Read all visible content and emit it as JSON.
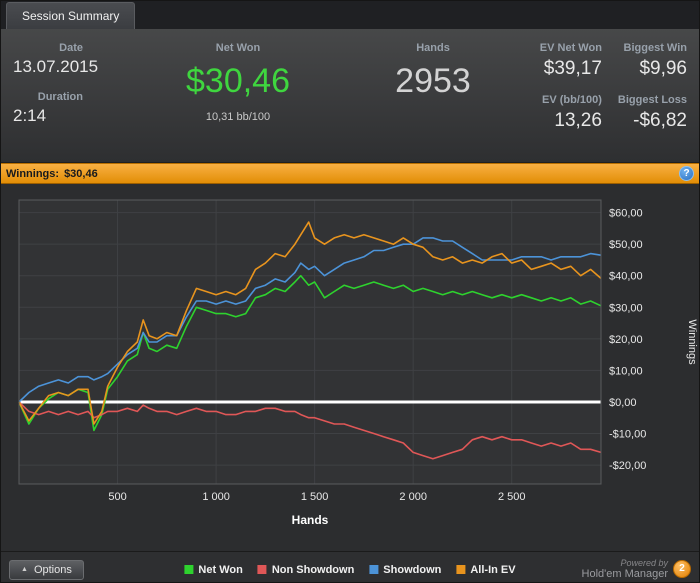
{
  "tab": {
    "title": "Session Summary"
  },
  "stats": {
    "date": {
      "label": "Date",
      "value": "13.07.2015"
    },
    "duration": {
      "label": "Duration",
      "value": "2:14"
    },
    "net_won": {
      "label": "Net Won",
      "value": "$30,46",
      "bb100": "10,31 bb/100"
    },
    "hands": {
      "label": "Hands",
      "value": "2953"
    },
    "right": [
      {
        "label": "EV Net Won",
        "value": "$39,17"
      },
      {
        "label": "Biggest Win",
        "value": "$9,96"
      },
      {
        "label": "EV (bb/100)",
        "value": "13,26"
      },
      {
        "label": "Biggest Loss",
        "value": "-$6,82"
      }
    ]
  },
  "winnings_bar": {
    "label": "Winnings:",
    "value": "$30,46",
    "help": "?"
  },
  "chart_data": {
    "type": "line",
    "title": "",
    "xlabel": "Hands",
    "ylabel": "Winnings",
    "xlim": [
      0,
      2953
    ],
    "ylim": [
      -26,
      64
    ],
    "x_ticks": [
      500,
      1000,
      1500,
      2000,
      2500
    ],
    "x_tick_labels": [
      "500",
      "1 000",
      "1 500",
      "2 000",
      "2 500"
    ],
    "y_ticks": [
      60,
      50,
      40,
      30,
      20,
      10,
      0,
      -10,
      -20
    ],
    "y_tick_labels": [
      "$60,00",
      "$50,00",
      "$40,00",
      "$30,00",
      "$20,00",
      "$10,00",
      "$0,00",
      "-$10,00",
      "-$20,00"
    ],
    "grid": true,
    "grid_color": "#3f4144",
    "plot_bg": "#323335",
    "plot_border_color": "#5a5c5e",
    "zero_line_color": "#ffffff",
    "tick_label_color": "#e8e8e8",
    "legend_position": "bottom",
    "x": [
      0,
      50,
      100,
      150,
      200,
      250,
      300,
      350,
      380,
      420,
      450,
      500,
      550,
      600,
      630,
      660,
      700,
      750,
      800,
      850,
      900,
      950,
      1000,
      1050,
      1100,
      1150,
      1200,
      1250,
      1300,
      1350,
      1400,
      1430,
      1470,
      1500,
      1550,
      1600,
      1650,
      1700,
      1750,
      1800,
      1850,
      1900,
      1950,
      2000,
      2050,
      2100,
      2150,
      2200,
      2250,
      2300,
      2350,
      2400,
      2450,
      2500,
      2550,
      2600,
      2650,
      2700,
      2750,
      2800,
      2850,
      2900,
      2953
    ],
    "series": [
      {
        "name": "Net Won",
        "color": "#2ed22e",
        "values": [
          0,
          -7,
          -2,
          1,
          3,
          2,
          4,
          3,
          -9,
          -4,
          4,
          8,
          13,
          15,
          22,
          17,
          16,
          18,
          17,
          24,
          30,
          29,
          28,
          28,
          27,
          28,
          33,
          34,
          36,
          35,
          38,
          40,
          37,
          38,
          33,
          35,
          37,
          36,
          37,
          38,
          37,
          36,
          37,
          35,
          36,
          35,
          34,
          35,
          34,
          35,
          34,
          33,
          34,
          33,
          34,
          33,
          32,
          33,
          32,
          33,
          31,
          32,
          30.46
        ]
      },
      {
        "name": "Non Showdown",
        "color": "#e05757",
        "values": [
          0,
          -3,
          -4,
          -3,
          -4,
          -3,
          -4,
          -3,
          -5,
          -4,
          -3,
          -3,
          -2,
          -3,
          -1,
          -2,
          -3,
          -3,
          -4,
          -3,
          -2,
          -3,
          -3,
          -4,
          -4,
          -3,
          -3,
          -2,
          -2,
          -3,
          -3,
          -4,
          -5,
          -5,
          -6,
          -7,
          -7,
          -8,
          -9,
          -10,
          -11,
          -12,
          -13,
          -16,
          -17,
          -18,
          -17,
          -16,
          -15,
          -12,
          -11,
          -12,
          -11,
          -12,
          -12,
          -13,
          -14,
          -13,
          -14,
          -13,
          -15,
          -15,
          -16
        ]
      },
      {
        "name": "Showdown",
        "color": "#4c93d8",
        "values": [
          0,
          3,
          5,
          6,
          7,
          6,
          8,
          8,
          7,
          8,
          9,
          12,
          15,
          17,
          22,
          19,
          19,
          21,
          21,
          27,
          32,
          32,
          31,
          32,
          31,
          32,
          36,
          37,
          39,
          38,
          41,
          44,
          42,
          43,
          40,
          42,
          44,
          45,
          46,
          48,
          48,
          49,
          50,
          50,
          52,
          52,
          51,
          51,
          49,
          47,
          45,
          45,
          45,
          45,
          46,
          46,
          46,
          45,
          46,
          46,
          46,
          47,
          46.5
        ]
      },
      {
        "name": "All-In EV",
        "color": "#e8941e",
        "values": [
          0,
          -6,
          -2,
          2,
          3,
          2,
          4,
          4,
          -7,
          -3,
          5,
          11,
          16,
          19,
          26,
          21,
          20,
          22,
          21,
          29,
          36,
          35,
          34,
          35,
          34,
          36,
          42,
          44,
          47,
          46,
          50,
          53,
          57,
          52,
          50,
          52,
          53,
          52,
          53,
          52,
          51,
          50,
          52,
          50,
          49,
          46,
          45,
          46,
          44,
          45,
          44,
          46,
          47,
          44,
          45,
          42,
          43,
          44,
          42,
          43,
          40,
          42,
          39.17
        ]
      }
    ]
  },
  "footer": {
    "options": "Options",
    "powered_by": "Powered by",
    "brand": "Hold'em Manager",
    "badge": "2"
  }
}
